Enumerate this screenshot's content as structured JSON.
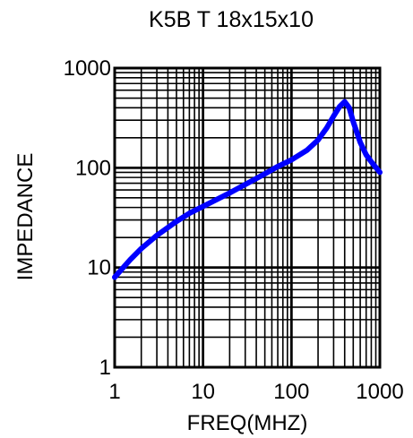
{
  "chart_data": {
    "type": "line",
    "title": "K5B T 18x15x10",
    "xlabel": "FREQ(MHZ)",
    "ylabel": "IMPEDANCE",
    "xscale": "log",
    "yscale": "log",
    "xlim": [
      1,
      1000
    ],
    "ylim": [
      1,
      1000
    ],
    "xticks": [
      1,
      10,
      100,
      1000
    ],
    "xtick_labels": [
      "1",
      "10",
      "100",
      "1000"
    ],
    "yticks": [
      1,
      10,
      100,
      1000
    ],
    "ytick_labels": [
      "1",
      "10",
      "100",
      "1000"
    ],
    "grid": true,
    "series": [
      {
        "color": "#0000ff",
        "x": [
          1,
          1.5,
          2,
          3,
          5,
          7,
          10,
          20,
          30,
          50,
          70,
          100,
          150,
          200,
          250,
          300,
          350,
          400,
          450,
          500,
          600,
          700,
          800,
          1000
        ],
        "y": [
          8,
          12,
          15.5,
          21,
          29,
          35,
          41,
          56,
          68,
          87,
          103,
          120,
          150,
          190,
          250,
          330,
          410,
          460,
          400,
          290,
          180,
          135,
          115,
          90
        ]
      }
    ]
  }
}
